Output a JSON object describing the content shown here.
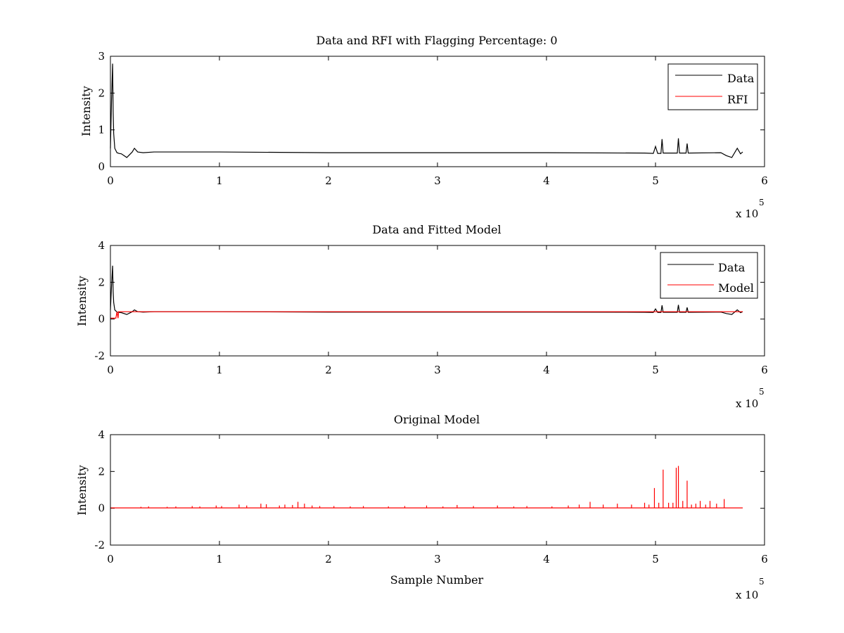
{
  "chart_data": [
    {
      "type": "line",
      "title": "Data and RFI with Flagging Percentage: 0",
      "xlabel": "",
      "ylabel": "Intensity",
      "xlim": [
        0,
        600000
      ],
      "ylim": [
        0,
        3
      ],
      "xticks": [
        0,
        1,
        2,
        3,
        4,
        5,
        6
      ],
      "yticks": [
        0,
        1,
        2,
        3
      ],
      "x_multiplier": "x 10",
      "x_multiplier_exp": "5",
      "legend": {
        "position": "top-right",
        "entries": [
          "Data",
          "RFI"
        ]
      },
      "colors": {
        "Data": "#000000",
        "RFI": "#ff0000"
      },
      "series": [
        {
          "name": "Data",
          "x": [
            0,
            1000,
            2000,
            2500,
            3000,
            4000,
            6000,
            8000,
            10000,
            15000,
            20000,
            22000,
            25000,
            30000,
            40000,
            100000,
            200000,
            300000,
            400000,
            490000,
            498000,
            500000,
            502000,
            505000,
            506000,
            507000,
            520000,
            521000,
            522000,
            528000,
            529000,
            530000,
            560000,
            565000,
            570000,
            575000,
            578000,
            580000
          ],
          "y": [
            0.5,
            1.8,
            2.8,
            1.5,
            0.9,
            0.5,
            0.38,
            0.36,
            0.35,
            0.25,
            0.4,
            0.5,
            0.4,
            0.38,
            0.4,
            0.4,
            0.38,
            0.38,
            0.38,
            0.37,
            0.36,
            0.55,
            0.36,
            0.36,
            0.75,
            0.37,
            0.37,
            0.77,
            0.37,
            0.37,
            0.63,
            0.37,
            0.38,
            0.3,
            0.25,
            0.5,
            0.35,
            0.4
          ]
        }
      ]
    },
    {
      "type": "line",
      "title": "Data and Fitted Model",
      "xlabel": "",
      "ylabel": "Intensity",
      "xlim": [
        0,
        600000
      ],
      "ylim": [
        -2,
        4
      ],
      "xticks": [
        0,
        1,
        2,
        3,
        4,
        5,
        6
      ],
      "yticks": [
        -2,
        0,
        2,
        4
      ],
      "x_multiplier": "x 10",
      "x_multiplier_exp": "5",
      "legend": {
        "position": "top-right",
        "entries": [
          "Data",
          "Model"
        ]
      },
      "colors": {
        "Data": "#000000",
        "Model": "#ff0000"
      },
      "series": [
        {
          "name": "Data",
          "x": [
            0,
            1000,
            2000,
            2500,
            3000,
            4000,
            6000,
            8000,
            10000,
            15000,
            20000,
            22000,
            25000,
            30000,
            40000,
            100000,
            200000,
            300000,
            400000,
            490000,
            498000,
            500000,
            502000,
            505000,
            506000,
            507000,
            520000,
            521000,
            522000,
            528000,
            529000,
            530000,
            560000,
            565000,
            570000,
            575000,
            578000,
            580000
          ],
          "y": [
            0.5,
            1.8,
            2.9,
            1.5,
            0.9,
            0.5,
            0.38,
            0.36,
            0.35,
            0.25,
            0.4,
            0.5,
            0.4,
            0.38,
            0.4,
            0.4,
            0.38,
            0.38,
            0.38,
            0.37,
            0.36,
            0.55,
            0.36,
            0.36,
            0.75,
            0.37,
            0.37,
            0.77,
            0.37,
            0.37,
            0.63,
            0.37,
            0.38,
            0.3,
            0.25,
            0.5,
            0.35,
            0.4
          ]
        },
        {
          "name": "Model",
          "x": [
            0,
            5000,
            6000,
            7000,
            7500,
            500000,
            506000,
            520000,
            580000
          ],
          "y": [
            0.05,
            0.05,
            0.4,
            0.05,
            0.4,
            0.4,
            0.4,
            0.4,
            0.4
          ]
        }
      ]
    },
    {
      "type": "line",
      "title": "Original Model",
      "xlabel": "Sample Number",
      "ylabel": "Intensity",
      "xlim": [
        0,
        600000
      ],
      "ylim": [
        -2,
        4
      ],
      "xticks": [
        0,
        1,
        2,
        3,
        4,
        5,
        6
      ],
      "yticks": [
        -2,
        0,
        2,
        4
      ],
      "x_multiplier": "x 10",
      "x_multiplier_exp": "5",
      "colors": {
        "Model": "#ff0000"
      },
      "baseline": 0.02,
      "x_end": 580000,
      "spikes": [
        [
          28000,
          0.08
        ],
        [
          35000,
          0.1
        ],
        [
          52000,
          0.08
        ],
        [
          60000,
          0.1
        ],
        [
          75000,
          0.12
        ],
        [
          82000,
          0.1
        ],
        [
          97000,
          0.15
        ],
        [
          102000,
          0.12
        ],
        [
          118000,
          0.2
        ],
        [
          125000,
          0.15
        ],
        [
          138000,
          0.25
        ],
        [
          143000,
          0.22
        ],
        [
          155000,
          0.15
        ],
        [
          160000,
          0.2
        ],
        [
          167000,
          0.18
        ],
        [
          172000,
          0.35
        ],
        [
          178000,
          0.25
        ],
        [
          185000,
          0.15
        ],
        [
          192000,
          0.12
        ],
        [
          205000,
          0.12
        ],
        [
          220000,
          0.1
        ],
        [
          232000,
          0.12
        ],
        [
          255000,
          0.1
        ],
        [
          270000,
          0.12
        ],
        [
          290000,
          0.15
        ],
        [
          305000,
          0.1
        ],
        [
          318000,
          0.18
        ],
        [
          333000,
          0.12
        ],
        [
          355000,
          0.15
        ],
        [
          370000,
          0.1
        ],
        [
          382000,
          0.12
        ],
        [
          405000,
          0.1
        ],
        [
          420000,
          0.15
        ],
        [
          430000,
          0.2
        ],
        [
          440000,
          0.35
        ],
        [
          452000,
          0.2
        ],
        [
          465000,
          0.25
        ],
        [
          478000,
          0.2
        ],
        [
          490000,
          0.3
        ],
        [
          494000,
          0.2
        ],
        [
          499000,
          1.1
        ],
        [
          503000,
          0.3
        ],
        [
          507000,
          2.1
        ],
        [
          512000,
          0.3
        ],
        [
          516000,
          0.3
        ],
        [
          519000,
          2.2
        ],
        [
          521000,
          2.3
        ],
        [
          525000,
          0.4
        ],
        [
          529000,
          1.5
        ],
        [
          533000,
          0.2
        ],
        [
          537000,
          0.25
        ],
        [
          541000,
          0.4
        ],
        [
          546000,
          0.2
        ],
        [
          550000,
          0.4
        ],
        [
          556000,
          0.25
        ],
        [
          563000,
          0.5
        ]
      ],
      "series": [
        {
          "name": "Model",
          "values_note": ""
        }
      ]
    }
  ]
}
